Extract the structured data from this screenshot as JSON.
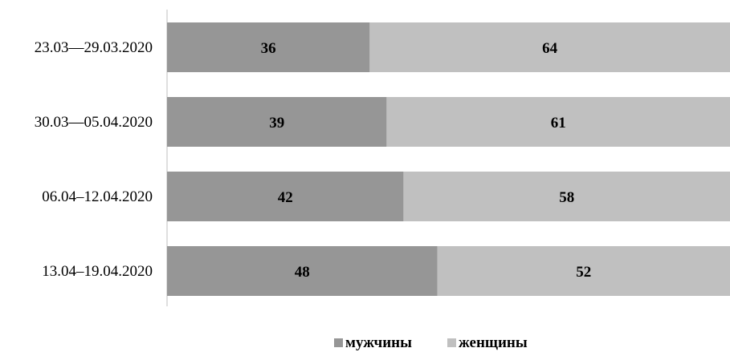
{
  "chart_data": {
    "type": "bar",
    "orientation": "horizontal",
    "stacked": true,
    "categories": [
      "23.03—29.03.2020",
      "30.03—05.04.2020",
      "06.04–12.04.2020",
      "13.04–19.04.2020"
    ],
    "series": [
      {
        "name": "мужчины",
        "values": [
          36,
          39,
          42,
          48
        ],
        "color": "#969696"
      },
      {
        "name": "женщины",
        "values": [
          64,
          61,
          58,
          52
        ],
        "color": "#c0c0c0"
      }
    ],
    "xlim": [
      0,
      100
    ],
    "grid": false,
    "legend": "bottom",
    "data_labels": true,
    "title": "",
    "xlabel": "",
    "ylabel": ""
  }
}
